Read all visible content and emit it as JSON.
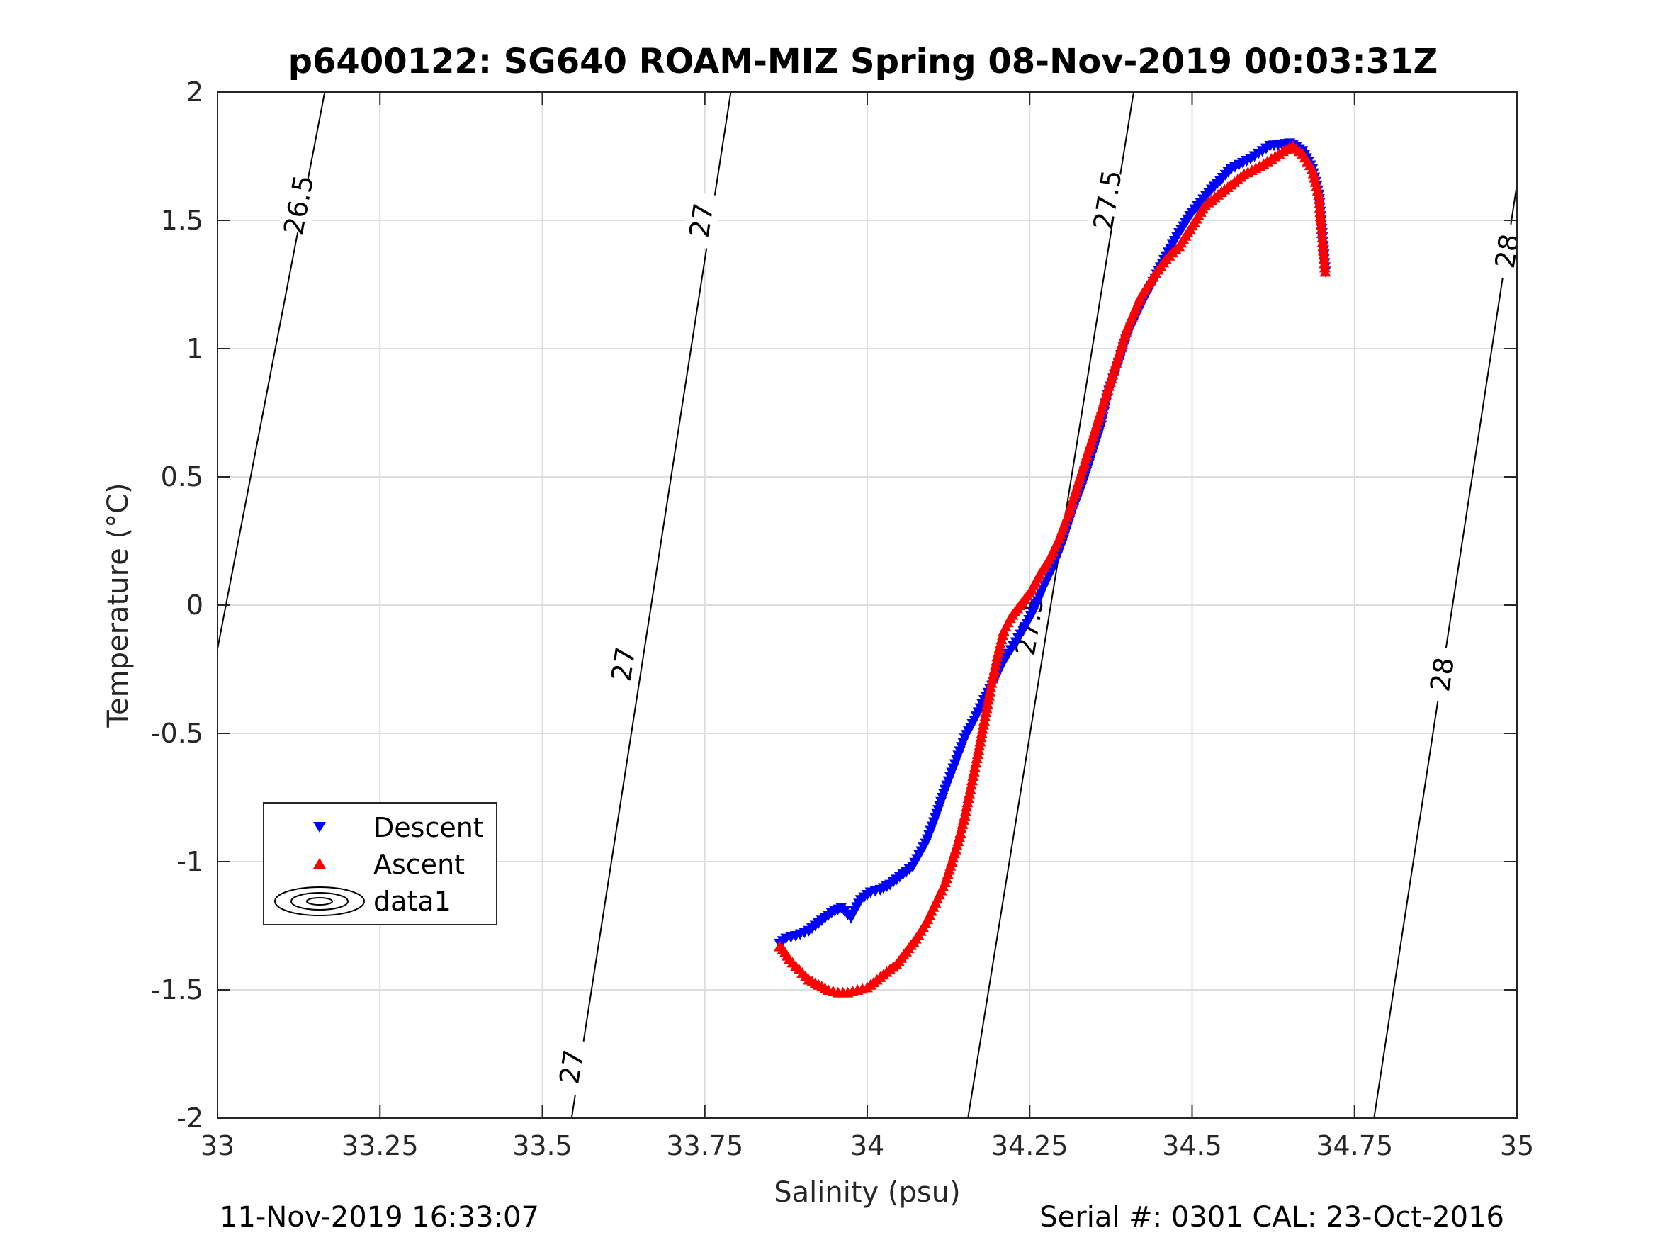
{
  "chart_data": {
    "type": "scatter",
    "title": "p6400122: SG640 ROAM-MIZ Spring 08-Nov-2019 00:03:31Z",
    "xlabel": "Salinity (psu)",
    "ylabel": "Temperature (°C)",
    "xlim": [
      33,
      35
    ],
    "ylim": [
      -2,
      2
    ],
    "xticks": [
      33,
      33.25,
      33.5,
      33.75,
      34,
      34.25,
      34.5,
      34.75,
      35
    ],
    "xtick_labels": [
      "33",
      "33.25",
      "33.5",
      "33.75",
      "34",
      "34.25",
      "34.5",
      "34.75",
      "35"
    ],
    "yticks": [
      -2,
      -1.5,
      -1,
      -0.5,
      0,
      0.5,
      1,
      1.5,
      2
    ],
    "ytick_labels": [
      "-2",
      "-1.5",
      "-1",
      "-0.5",
      "0",
      "0.5",
      "1",
      "1.5",
      "2"
    ],
    "grid": true,
    "legend_position": "lower-left",
    "legend": [
      "Descent",
      "Ascent",
      "data1"
    ],
    "colors": {
      "descent": "#0000ff",
      "ascent": "#ff0000",
      "contour": "#000000",
      "grid": "#dedede",
      "axis": "#262626"
    },
    "series": [
      {
        "name": "Descent",
        "marker": "triangle-down",
        "x": [
          34.705,
          34.7,
          34.695,
          34.685,
          34.67,
          34.65,
          34.62,
          34.59,
          34.56,
          34.53,
          34.5,
          34.48,
          34.46,
          34.44,
          34.42,
          34.4,
          34.385,
          34.37,
          34.36,
          34.345,
          34.33,
          34.315,
          34.3,
          34.285,
          34.27,
          34.255,
          34.24,
          34.225,
          34.21,
          34.195,
          34.18,
          34.165,
          34.15,
          34.135,
          34.12,
          34.105,
          34.09,
          34.07,
          34.05,
          34.035,
          34.02,
          34.005,
          33.99,
          33.975,
          33.96,
          33.945,
          33.93,
          33.91,
          33.89,
          33.875,
          33.865
        ],
        "y": [
          1.3,
          1.45,
          1.6,
          1.7,
          1.77,
          1.8,
          1.79,
          1.74,
          1.7,
          1.62,
          1.53,
          1.45,
          1.36,
          1.26,
          1.16,
          1.05,
          0.93,
          0.82,
          0.7,
          0.58,
          0.46,
          0.36,
          0.24,
          0.14,
          0.06,
          -0.03,
          -0.1,
          -0.16,
          -0.22,
          -0.3,
          -0.37,
          -0.45,
          -0.52,
          -0.62,
          -0.72,
          -0.83,
          -0.93,
          -1.02,
          -1.06,
          -1.09,
          -1.11,
          -1.12,
          -1.15,
          -1.22,
          -1.18,
          -1.2,
          -1.23,
          -1.27,
          -1.29,
          -1.3,
          -1.32
        ]
      },
      {
        "name": "Ascent",
        "marker": "triangle-up",
        "x": [
          34.705,
          34.7,
          34.695,
          34.685,
          34.67,
          34.655,
          34.64,
          34.61,
          34.58,
          34.55,
          34.52,
          34.5,
          34.48,
          34.46,
          34.44,
          34.42,
          34.4,
          34.385,
          34.37,
          34.355,
          34.34,
          34.325,
          34.31,
          34.295,
          34.28,
          34.265,
          34.25,
          34.235,
          34.22,
          34.21,
          34.2,
          34.19,
          34.18,
          34.17,
          34.16,
          34.15,
          34.14,
          34.13,
          34.12,
          34.105,
          34.09,
          34.075,
          34.06,
          34.045,
          34.03,
          34.015,
          34.0,
          33.985,
          33.97,
          33.955,
          33.94,
          33.925,
          33.91,
          33.895,
          33.88,
          33.87,
          33.865
        ],
        "y": [
          1.3,
          1.45,
          1.6,
          1.7,
          1.76,
          1.79,
          1.77,
          1.72,
          1.68,
          1.62,
          1.56,
          1.48,
          1.4,
          1.35,
          1.28,
          1.2,
          1.08,
          0.96,
          0.84,
          0.72,
          0.6,
          0.48,
          0.36,
          0.26,
          0.18,
          0.12,
          0.05,
          0.0,
          -0.05,
          -0.1,
          -0.2,
          -0.32,
          -0.45,
          -0.58,
          -0.7,
          -0.82,
          -0.92,
          -1.0,
          -1.08,
          -1.16,
          -1.24,
          -1.3,
          -1.35,
          -1.4,
          -1.43,
          -1.46,
          -1.49,
          -1.5,
          -1.51,
          -1.51,
          -1.5,
          -1.48,
          -1.46,
          -1.42,
          -1.38,
          -1.34,
          -1.33
        ]
      }
    ],
    "contours": [
      {
        "label": "26.5",
        "from": [
          33.0,
          -0.17
        ],
        "to": [
          33.165,
          2.0
        ],
        "label_positions": [
          [
            33.125,
            1.56
          ]
        ]
      },
      {
        "label": "27",
        "from": [
          33.545,
          -2.0
        ],
        "to": [
          33.79,
          2.0
        ],
        "label_positions": [
          [
            33.545,
            -1.8
          ],
          [
            33.625,
            -0.23
          ],
          [
            33.745,
            1.5
          ]
        ]
      },
      {
        "label": "27.5",
        "from": [
          34.155,
          -2.0
        ],
        "to": [
          34.41,
          2.0
        ],
        "label_positions": [
          [
            34.25,
            -0.08
          ],
          [
            34.37,
            1.58
          ]
        ]
      },
      {
        "label": "28",
        "from": [
          34.78,
          -2.0
        ],
        "to": [
          35.0,
          1.64
        ],
        "label_positions": [
          [
            34.885,
            -0.27
          ],
          [
            34.985,
            1.38
          ]
        ]
      }
    ]
  },
  "footer": {
    "left": "11-Nov-2019 16:33:07",
    "right": "Serial #: 0301  CAL: 23-Oct-2016"
  }
}
